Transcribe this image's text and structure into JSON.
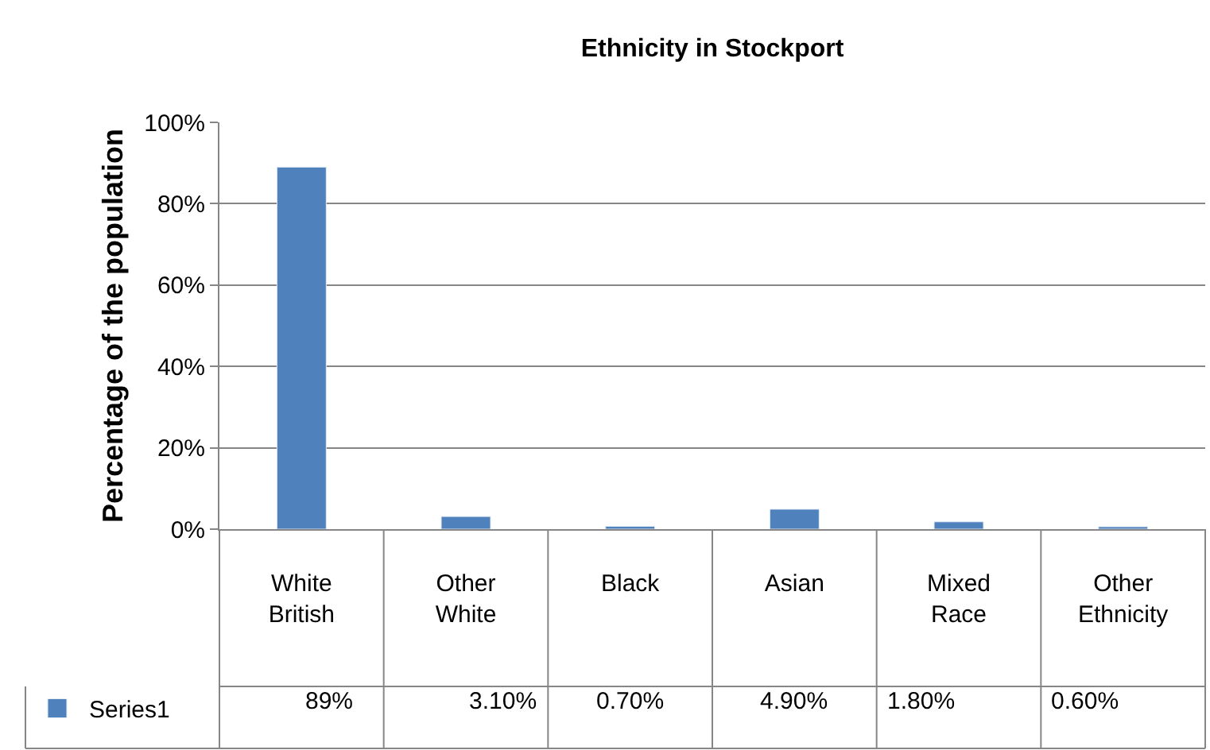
{
  "chart_data": {
    "type": "bar",
    "title": "Ethnicity in Stockport",
    "ylabel": "Percentage of the population",
    "categories": [
      "White British",
      "Other White",
      "Black",
      "Asian",
      "Mixed Race",
      "Other Ethnicity"
    ],
    "series": [
      {
        "name": "Series1",
        "color": "#4f81bd",
        "values": [
          89,
          3.1,
          0.7,
          4.9,
          1.8,
          0.6
        ],
        "value_labels": [
          "89%",
          "3.10%",
          "0.70%",
          "4.90%",
          "1.80%",
          "0.60%"
        ]
      }
    ],
    "ylim": [
      0,
      100
    ],
    "yticks": [
      {
        "value": 0,
        "label": "0%"
      },
      {
        "value": 20,
        "label": "20%"
      },
      {
        "value": 40,
        "label": "40%"
      },
      {
        "value": 60,
        "label": "60%"
      },
      {
        "value": 80,
        "label": "80%"
      },
      {
        "value": 100,
        "label": "100%"
      }
    ],
    "grid": "y",
    "legend": "bottom left"
  }
}
